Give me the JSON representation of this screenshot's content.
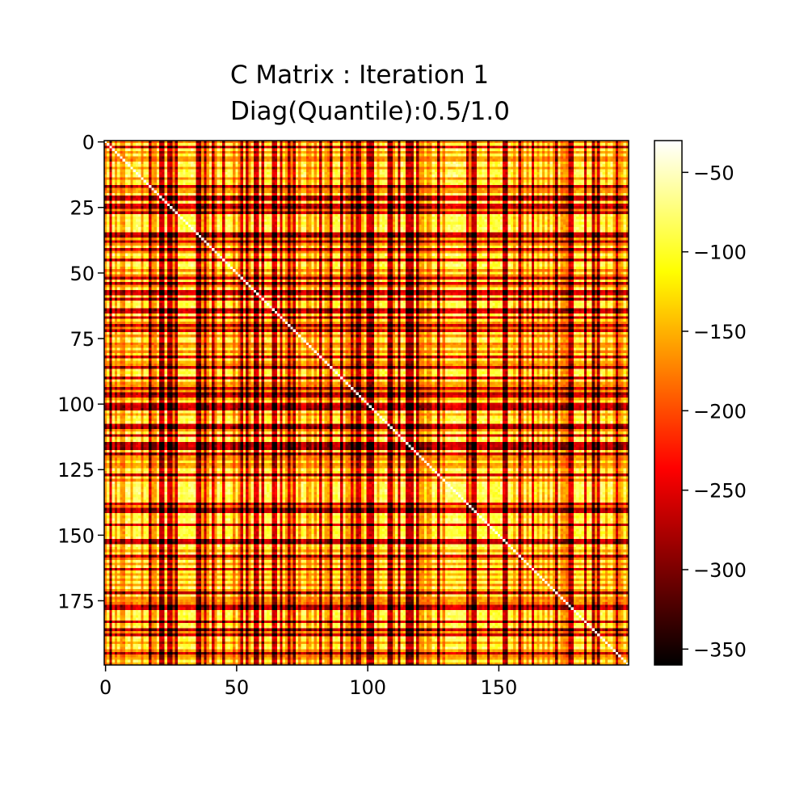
{
  "chart_data": {
    "type": "heatmap",
    "title_lines": [
      "C Matrix : Iteration 1",
      "Diag(Quantile):0.5/1.0"
    ],
    "xlabel": "",
    "ylabel": "",
    "matrix_size": [
      200,
      200
    ],
    "x_range": [
      0,
      199
    ],
    "y_range": [
      0,
      199
    ],
    "y_inverted": true,
    "x_ticks": [
      0,
      50,
      100,
      150
    ],
    "y_ticks": [
      0,
      25,
      50,
      75,
      100,
      125,
      150,
      175
    ],
    "x_tick_labels": [
      "0",
      "50",
      "100",
      "150"
    ],
    "y_tick_labels": [
      "0",
      "25",
      "50",
      "75",
      "100",
      "125",
      "150",
      "175"
    ],
    "value_range": [
      -360,
      -30
    ],
    "colormap": "hot",
    "colormap_stops": [
      "#000000",
      "#ff0000",
      "#ffff00",
      "#ffffff"
    ],
    "colorbar_ticks": [
      -50,
      -100,
      -150,
      -200,
      -250,
      -300,
      -350
    ],
    "colorbar_tick_labels": [
      "−50",
      "−100",
      "−150",
      "−200",
      "−250",
      "−300",
      "−350"
    ],
    "strong_bands": [
      2,
      22,
      25,
      35,
      38,
      54,
      57,
      64,
      86,
      90,
      101,
      108,
      116,
      127,
      141,
      158,
      183,
      188,
      195
    ],
    "strong_row_bands": [
      24,
      41,
      58,
      65,
      67,
      82,
      97,
      100,
      138,
      146,
      152,
      163,
      178,
      186
    ]
  }
}
